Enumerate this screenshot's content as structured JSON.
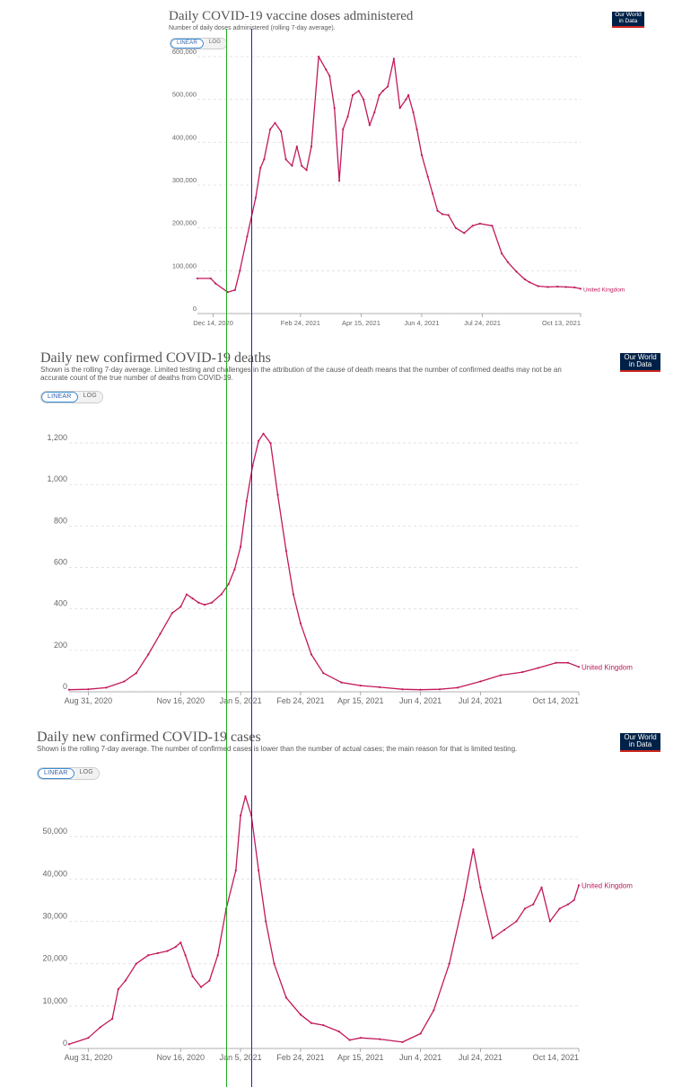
{
  "colors": {
    "series": "#c2185b",
    "grid": "#dddddd",
    "axis": "#666666",
    "green_line": "#22aa22",
    "blue_line": "#2222bb",
    "logo_bg": "#002147",
    "logo_bar": "#ce261e"
  },
  "logo": {
    "line1": "Our World",
    "line2": "in Data"
  },
  "toggle": {
    "linear": "LINEAR",
    "log": "LOG"
  },
  "chart_data": [
    {
      "type": "line",
      "title": "Daily COVID-19 vaccine doses administered",
      "subtitle": "Number of daily doses administered (rolling 7-day average).",
      "series": [
        {
          "name": "United Kingdom",
          "x": [
            "2020-12-01",
            "2020-12-12",
            "2020-12-16",
            "2020-12-26",
            "2021-01-01",
            "2021-01-05",
            "2021-01-11",
            "2021-01-18",
            "2021-01-22",
            "2021-01-25",
            "2021-01-30",
            "2021-02-03",
            "2021-02-08",
            "2021-02-12",
            "2021-02-17",
            "2021-02-21",
            "2021-02-25",
            "2021-03-01",
            "2021-03-05",
            "2021-03-11",
            "2021-03-17",
            "2021-03-20",
            "2021-03-24",
            "2021-03-28",
            "2021-03-31",
            "2021-04-04",
            "2021-04-08",
            "2021-04-13",
            "2021-04-17",
            "2021-04-22",
            "2021-04-26",
            "2021-04-30",
            "2021-05-03",
            "2021-05-07",
            "2021-05-12",
            "2021-05-17",
            "2021-05-22",
            "2021-05-24",
            "2021-05-28",
            "2021-05-31",
            "2021-06-04",
            "2021-06-09",
            "2021-06-13",
            "2021-06-17",
            "2021-06-21",
            "2021-06-26",
            "2021-07-02",
            "2021-07-09",
            "2021-07-16",
            "2021-07-22",
            "2021-08-01",
            "2021-08-09",
            "2021-08-14",
            "2021-08-21",
            "2021-08-28",
            "2021-09-01",
            "2021-09-08",
            "2021-09-16",
            "2021-09-24",
            "2021-10-01",
            "2021-10-08",
            "2021-10-13"
          ],
          "y": [
            82000,
            82000,
            70000,
            50000,
            55000,
            100000,
            180000,
            270000,
            340000,
            360000,
            430000,
            445000,
            425000,
            360000,
            345000,
            390000,
            345000,
            335000,
            390000,
            600000,
            570000,
            555000,
            480000,
            310000,
            430000,
            460000,
            510000,
            520000,
            500000,
            440000,
            470000,
            510000,
            520000,
            530000,
            595000,
            480000,
            500000,
            510000,
            470000,
            430000,
            370000,
            320000,
            280000,
            240000,
            232000,
            230000,
            200000,
            188000,
            205000,
            210000,
            205000,
            140000,
            120000,
            98000,
            80000,
            73000,
            64000,
            62000,
            63000,
            62000,
            61000,
            58000
          ]
        }
      ],
      "x_ticks": [
        "Dec 14, 2020",
        "Feb 24, 2021",
        "Apr 15, 2021",
        "Jun 4, 2021",
        "Jul 24, 2021",
        "Oct 13, 2021"
      ],
      "y_ticks": [
        "0",
        "100,000",
        "200,000",
        "300,000",
        "400,000",
        "500,000",
        "600,000"
      ],
      "ylim": [
        0,
        600000
      ]
    },
    {
      "type": "line",
      "title": "Daily new confirmed COVID-19 deaths",
      "subtitle": "Shown is the rolling 7-day average. Limited testing and challenges in the attribution of the cause of death means that the number of confirmed deaths may not be an accurate count of the true number of deaths from COVID-19.",
      "series": [
        {
          "name": "United Kingdom",
          "x": [
            "2020-08-15",
            "2020-08-31",
            "2020-09-15",
            "2020-09-30",
            "2020-10-10",
            "2020-10-20",
            "2020-10-30",
            "2020-11-09",
            "2020-11-16",
            "2020-11-21",
            "2020-11-26",
            "2020-12-01",
            "2020-12-06",
            "2020-12-12",
            "2020-12-20",
            "2020-12-26",
            "2020-12-31",
            "2021-01-05",
            "2021-01-10",
            "2021-01-15",
            "2021-01-20",
            "2021-01-24",
            "2021-01-30",
            "2021-02-05",
            "2021-02-12",
            "2021-02-18",
            "2021-02-24",
            "2021-03-05",
            "2021-03-15",
            "2021-03-30",
            "2021-04-15",
            "2021-05-01",
            "2021-05-20",
            "2021-06-04",
            "2021-06-20",
            "2021-07-05",
            "2021-07-24",
            "2021-08-10",
            "2021-08-28",
            "2021-09-10",
            "2021-09-25",
            "2021-10-05",
            "2021-10-14"
          ],
          "y": [
            10,
            12,
            20,
            50,
            90,
            180,
            280,
            380,
            410,
            470,
            450,
            430,
            420,
            430,
            470,
            520,
            590,
            700,
            920,
            1090,
            1210,
            1245,
            1200,
            950,
            680,
            470,
            330,
            180,
            90,
            45,
            30,
            22,
            12,
            10,
            12,
            20,
            50,
            80,
            95,
            115,
            140,
            140,
            120
          ]
        }
      ],
      "x_ticks": [
        "Aug 31, 2020",
        "Nov 16, 2020",
        "Jan 5, 2021",
        "Feb 24, 2021",
        "Apr 15, 2021",
        "Jun 4, 2021",
        "Jul 24, 2021",
        "Oct 14, 2021"
      ],
      "y_ticks": [
        "0",
        "200",
        "400",
        "600",
        "800",
        "1,000",
        "1,200"
      ],
      "ylim": [
        0,
        1300
      ]
    },
    {
      "type": "line",
      "title": "Daily new confirmed COVID-19 cases",
      "subtitle": "Shown is the rolling 7-day average. The number of confirmed cases is lower than the number of actual cases; the main reason for that is limited testing.",
      "series": [
        {
          "name": "United Kingdom",
          "x": [
            "2020-08-15",
            "2020-08-31",
            "2020-09-10",
            "2020-09-20",
            "2020-09-25",
            "2020-10-01",
            "2020-10-10",
            "2020-10-20",
            "2020-10-28",
            "2020-11-05",
            "2020-11-12",
            "2020-11-16",
            "2020-11-20",
            "2020-11-26",
            "2020-12-03",
            "2020-12-10",
            "2020-12-17",
            "2020-12-24",
            "2021-01-01",
            "2021-01-05",
            "2021-01-09",
            "2021-01-14",
            "2021-01-20",
            "2021-01-26",
            "2021-02-02",
            "2021-02-12",
            "2021-02-24",
            "2021-03-05",
            "2021-03-15",
            "2021-03-28",
            "2021-04-06",
            "2021-04-15",
            "2021-05-01",
            "2021-05-20",
            "2021-06-04",
            "2021-06-15",
            "2021-06-28",
            "2021-07-10",
            "2021-07-18",
            "2021-07-24",
            "2021-08-03",
            "2021-08-13",
            "2021-08-23",
            "2021-08-30",
            "2021-09-06",
            "2021-09-13",
            "2021-09-20",
            "2021-09-28",
            "2021-10-05",
            "2021-10-10",
            "2021-10-14"
          ],
          "y": [
            1000,
            2500,
            5000,
            7000,
            14000,
            16000,
            20000,
            22000,
            22500,
            23000,
            24000,
            25000,
            22000,
            17000,
            14500,
            16000,
            22000,
            33000,
            42000,
            55000,
            59500,
            55000,
            42000,
            30000,
            20000,
            12000,
            8000,
            6000,
            5500,
            4000,
            2000,
            2500,
            2200,
            1500,
            3500,
            9000,
            20000,
            35000,
            47000,
            38000,
            26000,
            28000,
            30000,
            33000,
            34000,
            38000,
            30000,
            33000,
            34000,
            35000,
            38500
          ]
        }
      ],
      "x_ticks": [
        "Aug 31, 2020",
        "Nov 16, 2020",
        "Jan 5, 2021",
        "Feb 24, 2021",
        "Apr 15, 2021",
        "Jun 4, 2021",
        "Jul 24, 2021",
        "Oct 14, 2021"
      ],
      "y_ticks": [
        "0",
        "10,000",
        "20,000",
        "30,000",
        "40,000",
        "50,000"
      ],
      "ylim": [
        0,
        60000
      ]
    }
  ]
}
